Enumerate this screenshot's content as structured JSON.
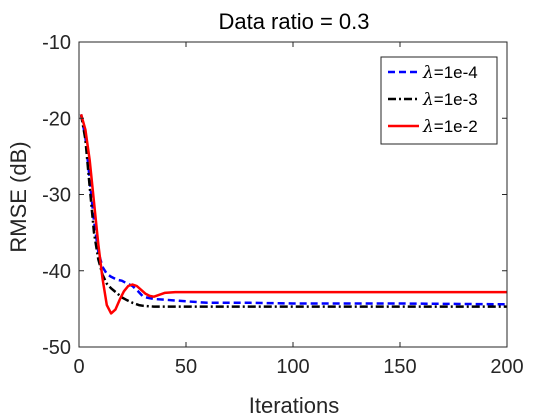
{
  "chart_data": {
    "type": "line",
    "title": "Data ratio = 0.3",
    "xlabel": "Iterations",
    "ylabel": "RMSE (dB)",
    "xlim": [
      0,
      200
    ],
    "ylim": [
      -50,
      -10
    ],
    "xticks": [
      0,
      50,
      100,
      150,
      200
    ],
    "yticks": [
      -10,
      -20,
      -30,
      -40,
      -50
    ],
    "grid": false,
    "legend_position": "top-right",
    "series": [
      {
        "name": "λ=1e-4",
        "lambda_symbol": "λ",
        "lambda_value": "=1e-4",
        "color": "#0000ff",
        "style": "dashed",
        "x": [
          1,
          3,
          5,
          7,
          9,
          11,
          13,
          15,
          18,
          20,
          22,
          25,
          28,
          30,
          33,
          35,
          40,
          50,
          60,
          80,
          100,
          150,
          200
        ],
        "y": [
          -19.5,
          -22.5,
          -28.0,
          -33.5,
          -37.5,
          -39.5,
          -40.4,
          -40.8,
          -41.2,
          -41.3,
          -41.6,
          -42.0,
          -42.8,
          -43.4,
          -43.6,
          -43.7,
          -43.8,
          -44.0,
          -44.2,
          -44.2,
          -44.3,
          -44.3,
          -44.4
        ]
      },
      {
        "name": "λ=1e-3",
        "lambda_symbol": "λ",
        "lambda_value": "=1e-3",
        "color": "#000000",
        "style": "dashdot",
        "x": [
          1,
          3,
          5,
          7,
          9,
          11,
          13,
          15,
          18,
          20,
          22,
          25,
          28,
          30,
          35,
          40,
          50,
          100,
          150,
          200
        ],
        "y": [
          -19.5,
          -22.8,
          -29.0,
          -35.0,
          -38.5,
          -40.5,
          -41.7,
          -42.3,
          -43.0,
          -43.5,
          -43.8,
          -44.2,
          -44.5,
          -44.6,
          -44.7,
          -44.7,
          -44.7,
          -44.7,
          -44.7,
          -44.7
        ]
      },
      {
        "name": "λ=1e-2",
        "lambda_symbol": "λ",
        "lambda_value": "=1e-2",
        "color": "#ff0000",
        "style": "solid",
        "x": [
          1,
          3,
          5,
          7,
          9,
          11,
          13,
          15,
          17,
          19,
          21,
          23,
          25,
          27,
          29,
          31,
          33,
          35,
          37,
          40,
          45,
          50,
          60,
          100,
          150,
          200
        ],
        "y": [
          -19.5,
          -21.5,
          -25.5,
          -31.0,
          -36.5,
          -41.0,
          -44.5,
          -45.6,
          -45.1,
          -43.8,
          -42.7,
          -42.0,
          -41.8,
          -42.0,
          -42.5,
          -43.0,
          -43.3,
          -43.4,
          -43.2,
          -42.9,
          -42.8,
          -42.8,
          -42.8,
          -42.8,
          -42.8,
          -42.8
        ]
      }
    ]
  }
}
